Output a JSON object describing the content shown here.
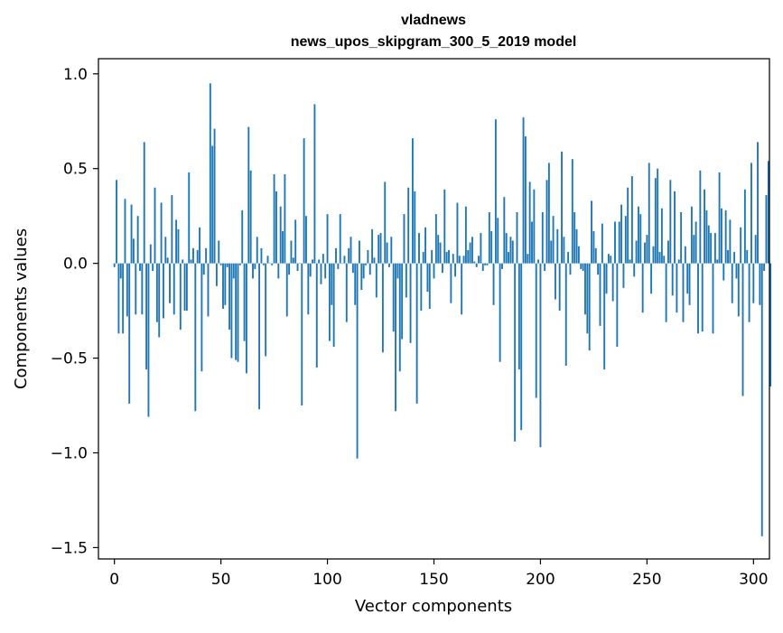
{
  "chart_data": {
    "type": "bar",
    "title_line1": "vladnews",
    "title_line2": "news_upos_skipgram_300_5_2019 model",
    "xlabel": "Vector components",
    "ylabel": "Components values",
    "xlim": [
      -7.5,
      307.5
    ],
    "ylim": [
      -1.56,
      1.08
    ],
    "xticks": [
      0,
      50,
      100,
      150,
      200,
      250,
      300
    ],
    "xtick_labels": [
      "0",
      "50",
      "100",
      "150",
      "200",
      "250",
      "300"
    ],
    "yticks": [
      -1.5,
      -1.0,
      -0.5,
      0.0,
      0.5,
      1.0
    ],
    "ytick_labels": [
      "−1.5",
      "−1.0",
      "−0.5",
      "0.0",
      "0.5",
      "1.0"
    ],
    "grid": false,
    "bar_color": "#1f77b4",
    "values": [
      -0.02,
      0.44,
      -0.37,
      -0.08,
      -0.37,
      0.34,
      -0.28,
      -0.74,
      0.31,
      0.13,
      -0.27,
      0.25,
      -0.04,
      -0.27,
      0.64,
      -0.56,
      -0.81,
      0.1,
      -0.04,
      0.4,
      -0.31,
      -0.39,
      0.32,
      -0.29,
      0.14,
      0.03,
      -0.21,
      0.36,
      -0.27,
      0.23,
      0.18,
      -0.35,
      0.02,
      -0.25,
      -0.25,
      0.48,
      0.02,
      0.08,
      -0.78,
      0.07,
      0.19,
      -0.57,
      -0.06,
      0.08,
      -0.28,
      0.95,
      0.62,
      0.71,
      -0.12,
      0.12,
      -0.01,
      -0.24,
      -0.22,
      -0.02,
      -0.35,
      -0.5,
      -0.08,
      -0.51,
      -0.52,
      -0.01,
      0.28,
      -0.41,
      -0.58,
      0.72,
      0.49,
      -0.08,
      -0.03,
      0.14,
      -0.77,
      0.08,
      -0.01,
      -0.49,
      0.04,
      0.0,
      -0.01,
      0.47,
      0.38,
      -0.08,
      0.3,
      0.17,
      0.47,
      -0.28,
      -0.06,
      0.12,
      0.03,
      0.23,
      -0.04,
      0.0,
      -0.75,
      0.66,
      0.25,
      -0.27,
      -0.07,
      0.02,
      0.84,
      -0.55,
      0.02,
      -0.11,
      0.05,
      -0.08,
      0.26,
      -0.41,
      -0.22,
      -0.44,
      0.08,
      -0.03,
      0.26,
      0.0,
      0.04,
      -0.31,
      0.08,
      0.14,
      -0.05,
      -0.22,
      -1.03,
      0.12,
      -0.14,
      -0.08,
      -0.01,
      0.07,
      -0.06,
      0.18,
      0.03,
      -0.18,
      0.15,
      0.16,
      -0.47,
      0.43,
      0.11,
      -0.02,
      0.14,
      -0.36,
      -0.78,
      -0.08,
      -0.57,
      -0.4,
      0.26,
      -0.18,
      0.4,
      -0.42,
      0.66,
      0.38,
      -0.74,
      0.16,
      -0.25,
      0.06,
      0.19,
      -0.15,
      -0.24,
      0.07,
      -0.08,
      0.26,
      0.15,
      0.11,
      -0.05,
      0.39,
      0.06,
      0.07,
      -0.21,
      0.05,
      -0.07,
      0.32,
      0.04,
      -0.27,
      0.04,
      0.3,
      0.07,
      0.11,
      0.14,
      0.01,
      -0.02,
      0.04,
      0.16,
      -0.04,
      -0.01,
      -0.01,
      0.27,
      0.17,
      -0.22,
      0.76,
      0.24,
      -0.52,
      -0.03,
      0.35,
      0.16,
      0.06,
      0.14,
      0.12,
      -0.94,
      0.27,
      -0.56,
      -0.88,
      0.77,
      0.67,
      0.05,
      0.43,
      0.22,
      0.39,
      -0.71,
      0.02,
      -0.97,
      0.27,
      -0.04,
      0.44,
      0.53,
      0.12,
      0.25,
      -0.19,
      0.18,
      -0.25,
      0.59,
      0.14,
      -0.54,
      0.06,
      -0.06,
      0.55,
      0.27,
      0.18,
      0.09,
      -0.03,
      -0.04,
      -0.27,
      -0.37,
      -0.46,
      0.33,
      0.17,
      0.08,
      -0.06,
      -0.33,
      0.21,
      -0.56,
      -0.16,
      0.05,
      0.04,
      -0.2,
      0.22,
      -0.44,
      0.22,
      0.31,
      -0.13,
      0.25,
      0.4,
      0.02,
      0.46,
      -0.07,
      0.12,
      0.3,
      0.26,
      -0.26,
      0.11,
      0.15,
      0.53,
      -0.16,
      0.09,
      0.45,
      0.5,
      0.06,
      0.29,
      0.04,
      -0.31,
      0.12,
      0.44,
      -0.17,
      0.38,
      -0.26,
      0.02,
      0.27,
      -0.31,
      0.09,
      -0.16,
      -0.22,
      0.3,
      0.15,
      0.22,
      -0.37,
      0.49,
      -0.36,
      0.39,
      0.28,
      0.2,
      0.16,
      -0.37,
      0.16,
      0.02,
      0.48,
      0.29,
      -0.09,
      0.28,
      0.07,
      0.23,
      -0.21,
      0.06,
      -0.08,
      -0.28,
      0.19,
      -0.7,
      0.39,
      0.07,
      -0.31,
      0.53,
      -0.21,
      0.15,
      0.64,
      -0.22,
      -1.44,
      -0.04,
      0.36,
      0.54,
      -0.65
    ]
  }
}
